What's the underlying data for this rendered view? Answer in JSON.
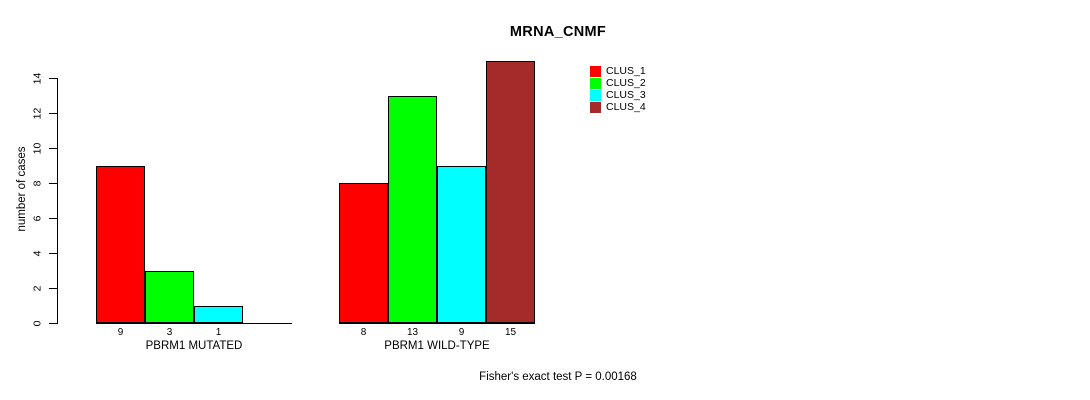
{
  "page": {
    "background": "#ffffff",
    "text_color": "#000000"
  },
  "chart_data": {
    "type": "bar",
    "title": "MRNA_CNMF",
    "ylabel": "number of cases",
    "xlabel": "",
    "footnote": "Fisher's exact test P = 0.00168",
    "ylim": [
      0,
      14
    ],
    "yticks": [
      0,
      2,
      4,
      6,
      8,
      10,
      12,
      14
    ],
    "grid": false,
    "axis_color": "#000000",
    "legend_position": "top-right-inside",
    "categories": [
      "PBRM1 MUTATED",
      "PBRM1 WILD-TYPE"
    ],
    "series": [
      {
        "name": "CLUS_1",
        "color": "#ff0000",
        "values": [
          9,
          8
        ]
      },
      {
        "name": "CLUS_2",
        "color": "#00ff00",
        "values": [
          3,
          13
        ]
      },
      {
        "name": "CLUS_3",
        "color": "#00ffff",
        "values": [
          1,
          9
        ]
      },
      {
        "name": "CLUS_4",
        "color": "#a52a2a",
        "values": [
          0,
          15
        ]
      }
    ]
  }
}
